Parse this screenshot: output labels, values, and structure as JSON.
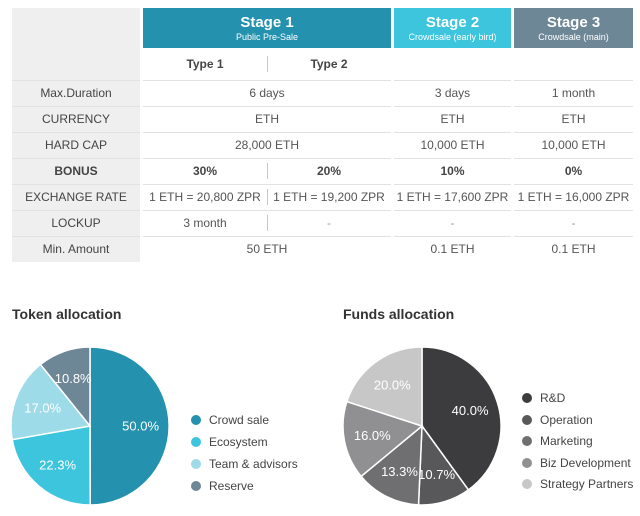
{
  "sale_table": {
    "stages": [
      {
        "title": "Stage 1",
        "subtitle": "Public Pre-Sale",
        "color": "#2492ae"
      },
      {
        "title": "Stage 2",
        "subtitle": "Crowdsale (early bird)",
        "color": "#3dc5de"
      },
      {
        "title": "Stage 3",
        "subtitle": "Crowdsale (main)",
        "color": "#6e8797"
      }
    ],
    "types": [
      "Type 1",
      "Type 2"
    ],
    "rows": {
      "max_duration": {
        "label": "Max.Duration",
        "s1": "6 days",
        "s2": "3 days",
        "s3": "1 month"
      },
      "currency": {
        "label": "CURRENCY",
        "s1": "ETH",
        "s2": "ETH",
        "s3": "ETH"
      },
      "hard_cap": {
        "label": "HARD CAP",
        "s1": "28,000 ETH",
        "s2": "10,000 ETH",
        "s3": "10,000 ETH"
      },
      "bonus": {
        "label": "BONUS",
        "t1": "30%",
        "t2": "20%",
        "s2": "10%",
        "s3": "0%"
      },
      "exchange_rate": {
        "label": "EXCHANGE RATE",
        "t1": "1 ETH = 20,800 ZPR",
        "t2": "1 ETH = 19,200 ZPR",
        "s2": "1 ETH = 17,600 ZPR",
        "s3": "1 ETH = 16,000 ZPR"
      },
      "lockup": {
        "label": "LOCKUP",
        "t1": "3 month",
        "t2": "-",
        "s2": "-",
        "s3": "-"
      },
      "min_amount": {
        "label": "Min. Amount",
        "s1": "50 ETH",
        "s2": "0.1 ETH",
        "s3": "0.1 ETH"
      }
    }
  },
  "chart_data": [
    {
      "type": "pie",
      "title": "Token allocation",
      "slices": [
        {
          "name": "Crowd sale",
          "value": 50.0,
          "label": "50.0%",
          "color": "#2492ae"
        },
        {
          "name": "Ecosystem",
          "value": 22.3,
          "label": "22.3%",
          "color": "#3dc5de"
        },
        {
          "name": "Team & advisors",
          "value": 17.0,
          "label": "17.0%",
          "color": "#9edbe9"
        },
        {
          "name": "Reserve",
          "value": 10.8,
          "label": "10.8%",
          "color": "#6e8797"
        }
      ],
      "legend": "right"
    },
    {
      "type": "pie",
      "title": "Funds allocation",
      "slices": [
        {
          "name": "R&D",
          "value": 40.0,
          "label": "40.0%",
          "color": "#3c3c3e"
        },
        {
          "name": "Operation",
          "value": 10.7,
          "label": "10.7%",
          "color": "#58585a"
        },
        {
          "name": "Marketing",
          "value": 13.3,
          "label": "13.3%",
          "color": "#6f6f71"
        },
        {
          "name": "Biz Development",
          "value": 16.0,
          "label": "16.0%",
          "color": "#909092"
        },
        {
          "name": "Strategy Partners",
          "value": 20.0,
          "label": "20.0%",
          "color": "#c7c7c8"
        }
      ],
      "legend": "right"
    }
  ]
}
